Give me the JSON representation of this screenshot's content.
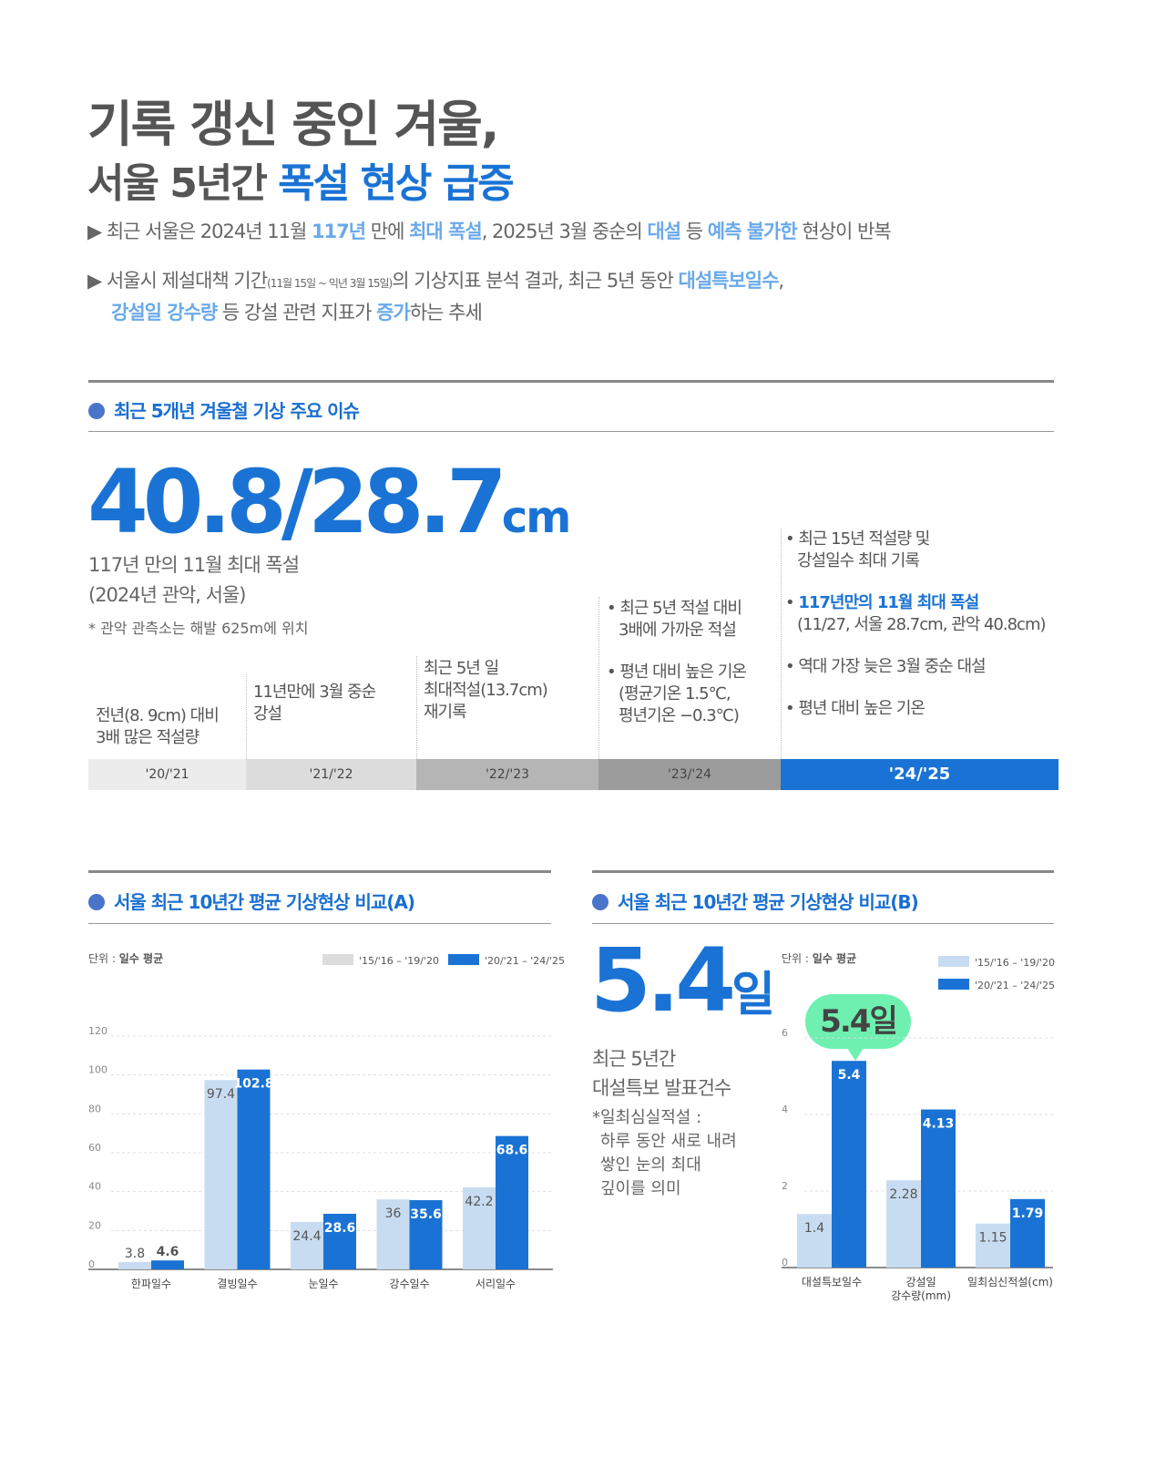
{
  "title": {
    "line1": "기록 갱신 중인 겨울,",
    "line2_a": "서울 5년간 ",
    "line2_b": "폭설 현상 급증"
  },
  "bullets": [
    {
      "parts": [
        "최근 서울은 2024년 11월 ",
        "117년",
        " 만에 ",
        "최대 폭설",
        ", 2025년 3월 중순의 ",
        "대설",
        " 등 ",
        "예측 불가한",
        " 현상이 반복"
      ]
    },
    {
      "parts": [
        "서울시 제설대책 기간",
        "(11월 15일 ~ 익년 3월 15일)",
        "의 기상지표 분석 결과, 최근 5년 동안 ",
        "대설특보일수",
        ",",
        "강설일 강수량",
        " 등 강설 관련 지표가 ",
        "증가",
        "하는 추세"
      ]
    }
  ],
  "section1": {
    "title": "최근 5개년 겨울철 기상 주요 이슈",
    "big_value": "40.8/28.7",
    "big_unit": "cm",
    "caption1": "117년 만의 11월 최대 폭설",
    "caption2": "(2024년 관악, 서울)",
    "note": "* 관악 관측소는 해발 625m에 위치",
    "seasons": [
      {
        "label": "'20/'21",
        "text": [
          "전년(8. 9cm) 대비",
          "3배 많은 적설량"
        ]
      },
      {
        "label": "'21/'22",
        "text": [
          "11년만에 3월 중순",
          "강설"
        ]
      },
      {
        "label": "'22/'23",
        "text": [
          "최근 5년 일",
          "최대적설(13.7cm)",
          "재기록"
        ]
      },
      {
        "label": "'23/'24",
        "items": [
          [
            "최근 5년 적설 대비",
            "3배에 가까운 적설"
          ],
          [
            "평년 대비 높은 기온",
            "(평균기온 1.5℃,",
            "평년기온 −0.3℃)"
          ]
        ]
      },
      {
        "label": "'24/'25",
        "items": [
          [
            "최근 15년 적설량 및",
            "강설일수 최대 기록"
          ],
          [
            "117년만의 11월 최대 폭설",
            "(11/27, 서울 28.7cm, 관악 40.8cm)"
          ],
          [
            "역대 가장 늦은 3월 중순 대설"
          ],
          [
            "평년 대비 높은 기온"
          ]
        ]
      }
    ]
  },
  "section2": {
    "title": "서울 최근 10년간 평균 기상현상 비교(A)"
  },
  "section3": {
    "title": "서울 최근 10년간 평균 기상현상 비교(B)",
    "big_value": "5.4",
    "big_unit": "일",
    "caption": [
      "최근 5년간",
      "대설특보 발표건수"
    ],
    "note": [
      "*일최심실적설 :",
      "하루 동안 새로 내려",
      "쌓인 눈의 최대",
      "깊이를 의미"
    ],
    "callout": "5.4일"
  },
  "colors": {
    "light": "#c8dcf1",
    "dark": "#1a73d4",
    "legend_light_A": "#dcdcdc"
  },
  "chart_data": [
    {
      "type": "bar",
      "title": "서울 최근 10년간 평균 기상현상 비교(A)",
      "unit_label": "단위 : ",
      "unit_value": "일수 평균",
      "categories": [
        "한파일수",
        "결빙일수",
        "눈일수",
        "강수일수",
        "서리일수"
      ],
      "series": [
        {
          "name": "'15/'16 – '19/'20",
          "values": [
            3.8,
            97.4,
            24.4,
            36,
            42.2
          ]
        },
        {
          "name": "'20/'21 – '24/'25",
          "values": [
            4.6,
            102.8,
            28.6,
            35.6,
            68.6
          ]
        }
      ],
      "ylim": [
        0,
        120
      ],
      "yticks": [
        "0",
        "20",
        "40",
        "60",
        "80",
        "100",
        "120"
      ],
      "grid": true,
      "legend": "top-right"
    },
    {
      "type": "bar",
      "title": "서울 최근 10년간 평균 기상현상 비교(B)",
      "unit_label": "단위 : ",
      "unit_value": "일수 평균",
      "categories": [
        "대설특보일수",
        "강설일\n강수량(mm)",
        "일최심신적설(cm)"
      ],
      "series": [
        {
          "name": "'15/'16 – '19/'20",
          "values": [
            1.4,
            2.28,
            1.15
          ]
        },
        {
          "name": "'20/'21 – '24/'25",
          "values": [
            5.4,
            4.13,
            1.79
          ]
        }
      ],
      "ylim": [
        0,
        6
      ],
      "yticks": [
        "0",
        "2",
        "4",
        "6"
      ],
      "grid": true,
      "legend": "top-right"
    }
  ]
}
